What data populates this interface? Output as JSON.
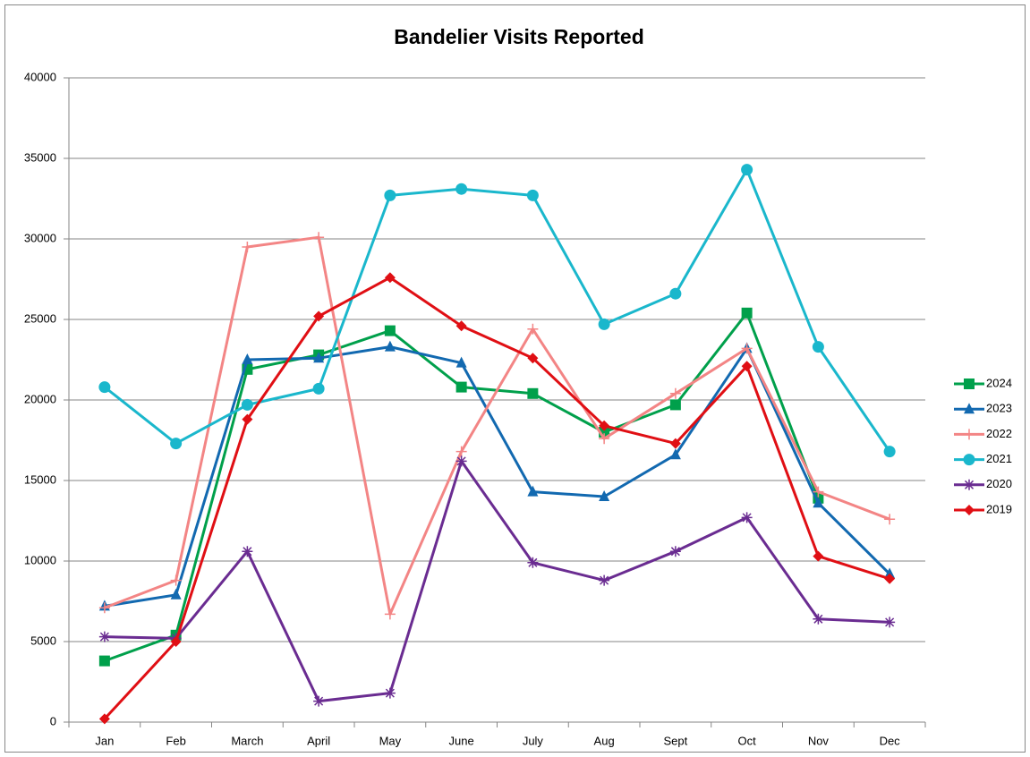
{
  "chart_data": {
    "type": "line",
    "title": "Bandelier Visits Reported",
    "categories": [
      "Jan",
      "Feb",
      "March",
      "April",
      "May",
      "June",
      "July",
      "Aug",
      "Sept",
      "Oct",
      "Nov",
      "Dec"
    ],
    "ylim": [
      0,
      40000
    ],
    "yticks": [
      0,
      5000,
      10000,
      15000,
      20000,
      25000,
      30000,
      35000,
      40000
    ],
    "grid": true,
    "legend": "right",
    "series": [
      {
        "name": "2024",
        "color": "#00a04b",
        "marker": "square",
        "values": [
          3800,
          5400,
          21900,
          22800,
          24300,
          20800,
          20400,
          18000,
          19700,
          25400,
          13900,
          null
        ]
      },
      {
        "name": "2023",
        "color": "#1269b0",
        "marker": "triangle",
        "values": [
          7200,
          7900,
          22500,
          22600,
          23300,
          22300,
          14300,
          14000,
          16600,
          23200,
          13600,
          9200
        ]
      },
      {
        "name": "2022",
        "color": "#f38585",
        "marker": "plus",
        "values": [
          7100,
          8800,
          29500,
          30100,
          6700,
          16800,
          24400,
          17600,
          20400,
          23200,
          14300,
          12600
        ]
      },
      {
        "name": "2021",
        "color": "#1ab7cc",
        "marker": "circle",
        "values": [
          20800,
          17300,
          19700,
          20700,
          32700,
          33100,
          32700,
          24700,
          26600,
          34300,
          23300,
          16800
        ]
      },
      {
        "name": "2020",
        "color": "#6a2c91",
        "marker": "star",
        "values": [
          5300,
          5200,
          10600,
          1300,
          1800,
          16200,
          9900,
          8800,
          10600,
          12700,
          6400,
          6200
        ]
      },
      {
        "name": "2019",
        "color": "#e00f14",
        "marker": "diamond",
        "values": [
          200,
          5000,
          18800,
          25200,
          27600,
          24600,
          22600,
          18400,
          17300,
          22100,
          10300,
          8900
        ]
      }
    ]
  }
}
